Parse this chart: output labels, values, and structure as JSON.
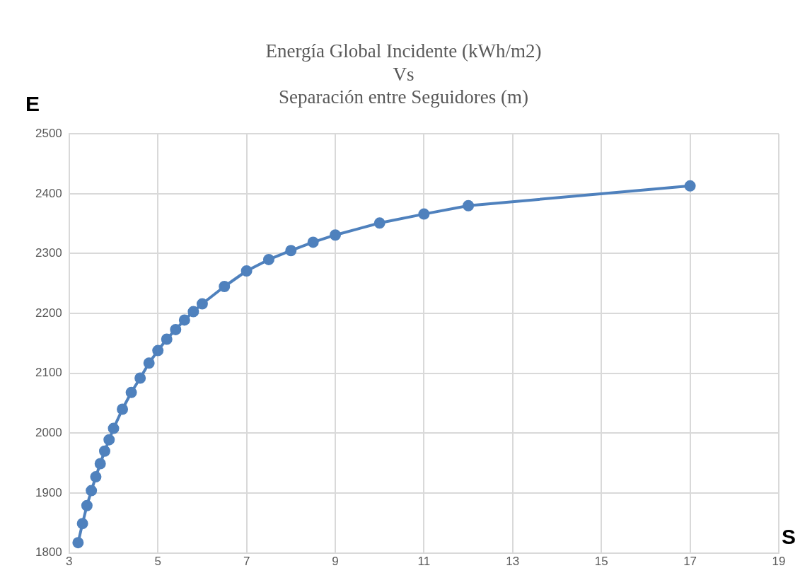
{
  "chart_data": {
    "type": "line",
    "title": "Energía Global Incidente (kWh/m2)\nVs\nSeparación entre Seguidores (m)",
    "xlabel": "S",
    "ylabel": "E",
    "series": [
      {
        "color": "#4f81bd",
        "x": [
          3.2,
          3.3,
          3.4,
          3.5,
          3.6,
          3.7,
          3.8,
          3.9,
          4.0,
          4.2,
          4.4,
          4.6,
          4.8,
          5.0,
          5.2,
          5.4,
          5.6,
          5.8,
          6.0,
          6.5,
          7.0,
          7.5,
          8.0,
          8.5,
          9.0,
          10,
          11,
          12,
          17
        ],
        "values": [
          1817,
          1849,
          1879,
          1904,
          1927,
          1949,
          1970,
          1989,
          2008,
          2040,
          2068,
          2092,
          2117,
          2138,
          2157,
          2173,
          2189,
          2203,
          2216,
          2245,
          2271,
          2290,
          2305,
          2319,
          2331,
          2351,
          2366,
          2380,
          2413
        ]
      }
    ],
    "xlim": [
      3,
      19
    ],
    "xticks": [
      3,
      5,
      7,
      9,
      11,
      13,
      15,
      17,
      19
    ],
    "ylim": [
      1800,
      2500
    ],
    "yticks": [
      1800,
      1900,
      2000,
      2100,
      2200,
      2300,
      2400,
      2500
    ],
    "grid": true,
    "legend": false,
    "marker": "circle",
    "line_style": "solid"
  }
}
